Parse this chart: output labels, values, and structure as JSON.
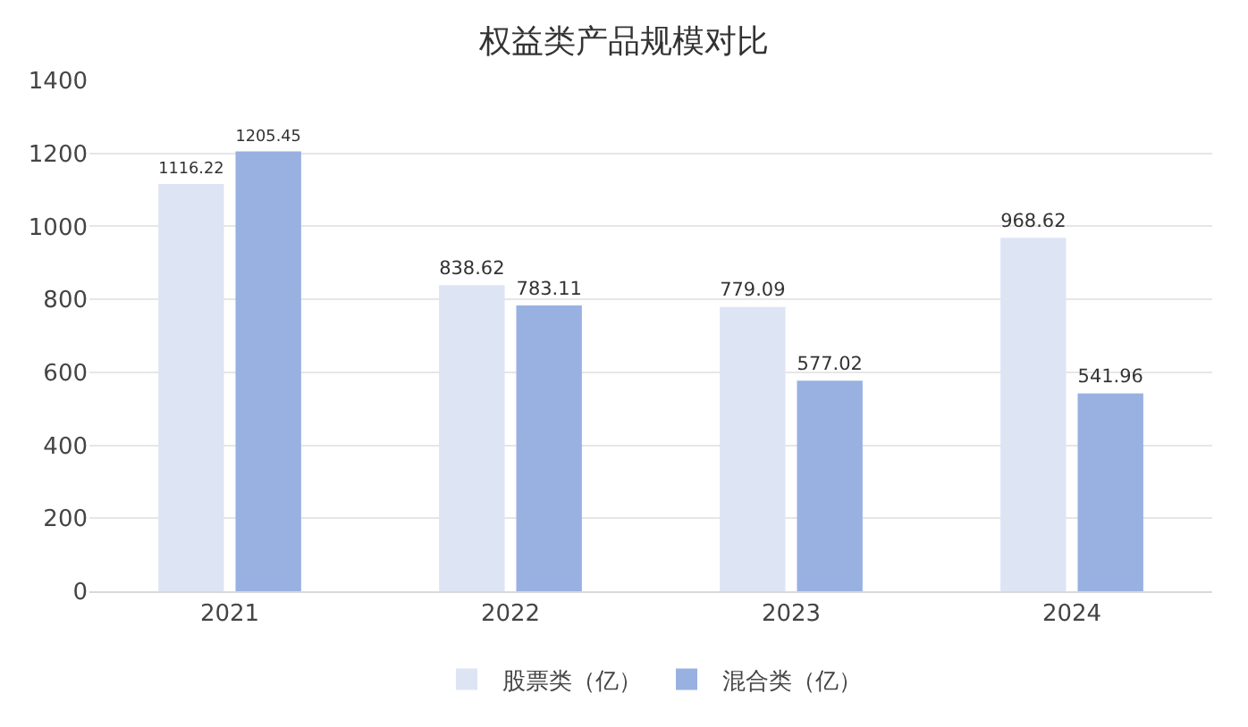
{
  "chart_data": {
    "type": "bar",
    "title": "权益类产品规模对比",
    "categories": [
      "2021",
      "2022",
      "2023",
      "2024"
    ],
    "series": [
      {
        "name": "股票类（亿）",
        "color": "#dde4f4",
        "values": [
          1116.22,
          838.62,
          779.09,
          968.62
        ]
      },
      {
        "name": "混合类（亿）",
        "color": "#98b1e1",
        "values": [
          1205.45,
          783.11,
          577.02,
          541.96
        ]
      }
    ],
    "ylim": [
      0,
      1400
    ],
    "yticks": [
      0,
      200,
      400,
      600,
      800,
      1000,
      1200,
      1400
    ],
    "grid": "y",
    "legend": "bottom",
    "data_labels": true
  }
}
